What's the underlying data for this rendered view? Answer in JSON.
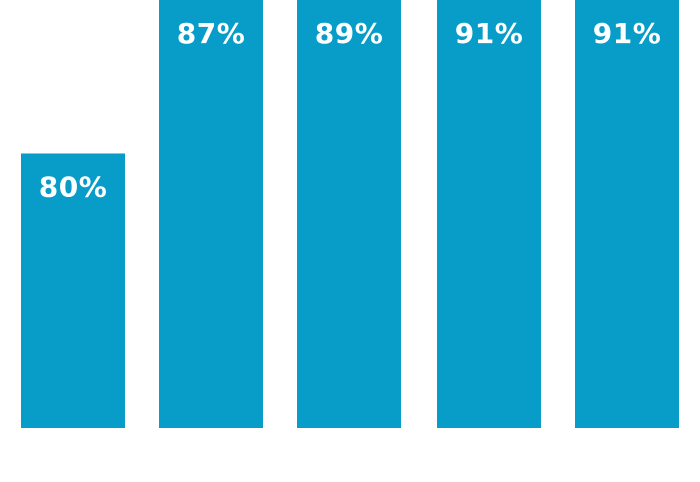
{
  "chart_data": {
    "type": "bar",
    "categories": [
      "",
      "",
      "",
      "",
      ""
    ],
    "values": [
      80,
      87,
      89,
      91,
      91
    ],
    "data_labels": [
      "80%",
      "87%",
      "89%",
      "91%",
      "91%"
    ],
    "title": "",
    "xlabel": "",
    "ylabel": "",
    "grid": false,
    "legend": "none",
    "colors": {
      "bar": "#079dc8",
      "label": "#ffffff",
      "background": "#ffffff"
    }
  }
}
